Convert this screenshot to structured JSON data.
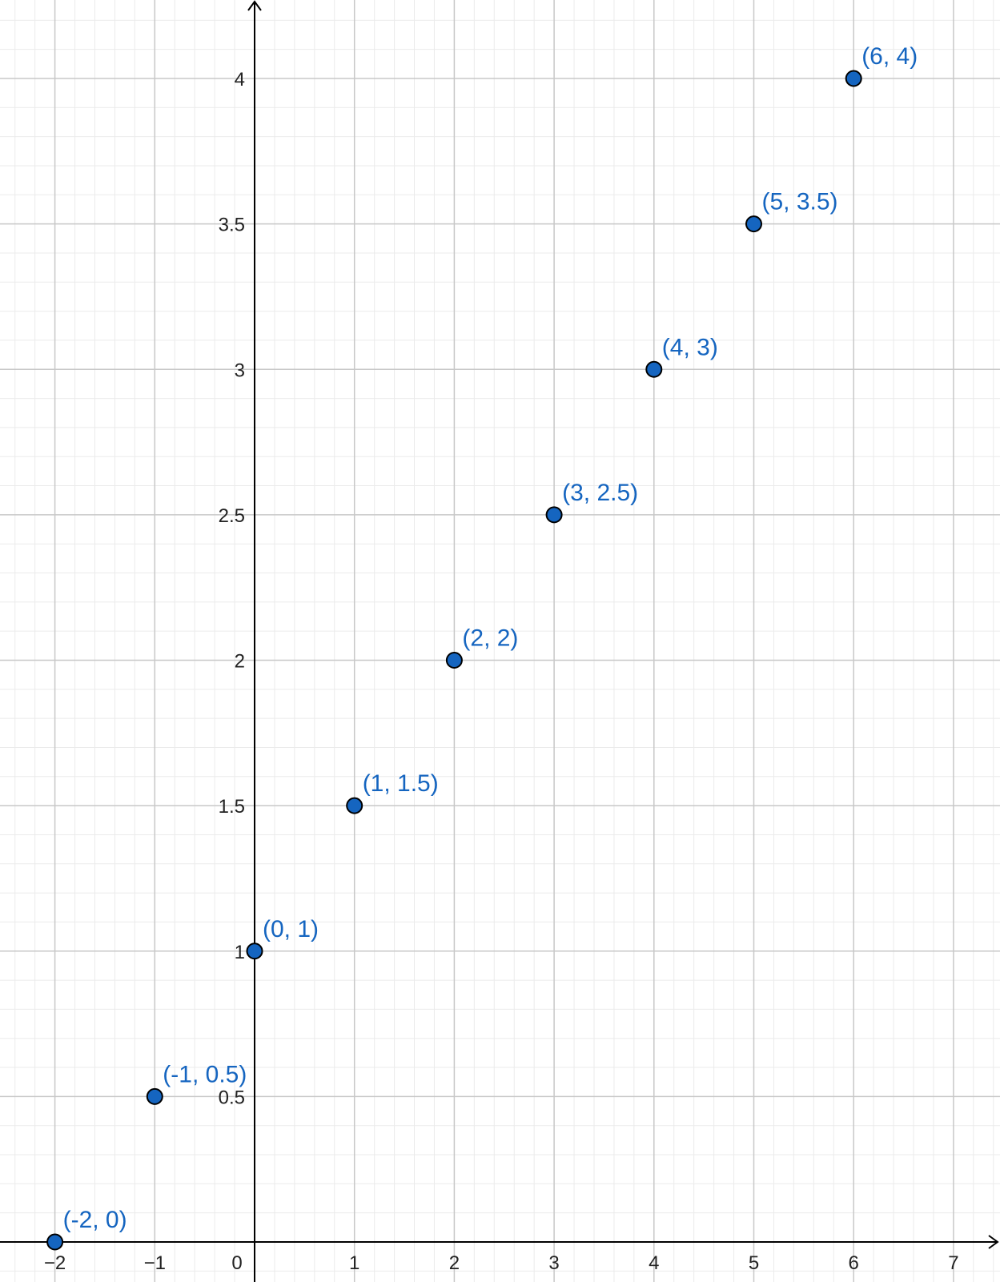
{
  "chart_data": {
    "type": "scatter",
    "title": "",
    "xlabel": "",
    "ylabel": "",
    "xlim": [
      -2.5,
      7.4
    ],
    "ylim": [
      -0.1,
      4.25
    ],
    "grid": true,
    "x_ticks": [
      {
        "value": -2,
        "label": "−2"
      },
      {
        "value": -1,
        "label": "−1"
      },
      {
        "value": 1,
        "label": "1"
      },
      {
        "value": 2,
        "label": "2"
      },
      {
        "value": 3,
        "label": "3"
      },
      {
        "value": 4,
        "label": "4"
      },
      {
        "value": 5,
        "label": "5"
      },
      {
        "value": 6,
        "label": "6"
      },
      {
        "value": 7,
        "label": "7"
      }
    ],
    "y_ticks": [
      {
        "value": 0.5,
        "label": "0.5"
      },
      {
        "value": 1,
        "label": "1"
      },
      {
        "value": 1.5,
        "label": "1.5"
      },
      {
        "value": 2,
        "label": "2"
      },
      {
        "value": 2.5,
        "label": "2.5"
      },
      {
        "value": 3,
        "label": "3"
      },
      {
        "value": 3.5,
        "label": "3.5"
      },
      {
        "value": 4,
        "label": "4"
      }
    ],
    "origin_label": "0",
    "points": [
      {
        "x": -2,
        "y": 0,
        "label": "(-2, 0)"
      },
      {
        "x": -1,
        "y": 0.5,
        "label": "(-1, 0.5)"
      },
      {
        "x": 0,
        "y": 1,
        "label": "(0, 1)"
      },
      {
        "x": 1,
        "y": 1.5,
        "label": "(1, 1.5)"
      },
      {
        "x": 2,
        "y": 2,
        "label": "(2, 2)"
      },
      {
        "x": 3,
        "y": 2.5,
        "label": "(3, 2.5)"
      },
      {
        "x": 4,
        "y": 3,
        "label": "(4, 3)"
      },
      {
        "x": 5,
        "y": 3.5,
        "label": "(5, 3.5)"
      },
      {
        "x": 6,
        "y": 4,
        "label": "(6, 4)"
      }
    ],
    "colors": {
      "point_fill": "#1565c0",
      "point_stroke": "#000000",
      "label": "#1565c0",
      "major_grid": "#c8c8c8",
      "minor_grid": "#ebebeb",
      "axis": "#000000"
    }
  }
}
